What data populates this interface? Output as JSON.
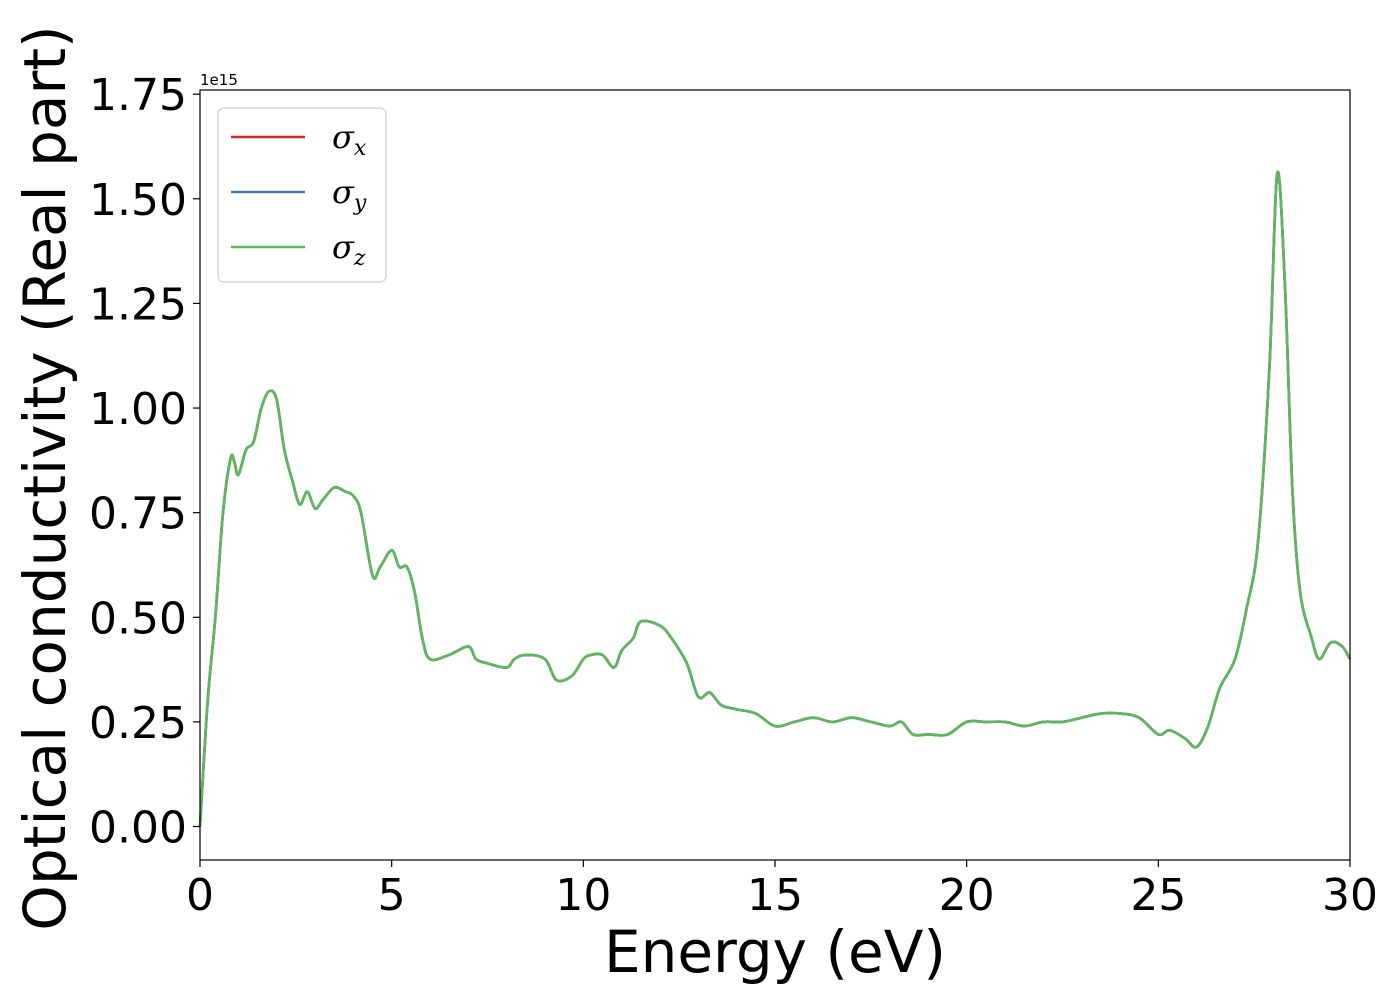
{
  "chart_data": {
    "type": "line",
    "title": "",
    "xlabel": "Energy (eV)",
    "ylabel": "Optical conductivity (Real part)",
    "y_offset_label": "1e15",
    "xlim": [
      0,
      30
    ],
    "ylim": [
      -0.08,
      1.76
    ],
    "xticks": [
      0,
      5,
      10,
      15,
      20,
      25,
      30
    ],
    "xtick_labels": [
      "0",
      "5",
      "10",
      "15",
      "20",
      "25",
      "30"
    ],
    "yticks": [
      0.0,
      0.25,
      0.5,
      0.75,
      1.0,
      1.25,
      1.5,
      1.75
    ],
    "ytick_labels": [
      "0.00",
      "0.25",
      "0.50",
      "0.75",
      "1.00",
      "1.25",
      "1.50",
      "1.75"
    ],
    "grid": false,
    "legend_position": "top-left",
    "x": [
      0.0,
      0.2,
      0.4,
      0.6,
      0.8,
      0.9,
      1.0,
      1.2,
      1.4,
      1.6,
      1.8,
      2.0,
      2.2,
      2.4,
      2.6,
      2.8,
      3.0,
      3.2,
      3.5,
      3.8,
      4.0,
      4.2,
      4.5,
      4.7,
      5.0,
      5.2,
      5.4,
      5.6,
      5.8,
      6.0,
      6.5,
      7.0,
      7.2,
      7.5,
      8.0,
      8.2,
      8.5,
      9.0,
      9.3,
      9.7,
      10.0,
      10.2,
      10.5,
      10.8,
      11.0,
      11.3,
      11.5,
      12.0,
      12.3,
      12.7,
      13.0,
      13.3,
      13.6,
      14.0,
      14.5,
      15.0,
      15.5,
      16.0,
      16.5,
      17.0,
      17.5,
      18.0,
      18.3,
      18.6,
      19.0,
      19.5,
      20.0,
      20.5,
      21.0,
      21.5,
      22.0,
      22.5,
      23.0,
      23.5,
      24.0,
      24.5,
      25.0,
      25.3,
      25.7,
      26.0,
      26.3,
      26.6,
      27.0,
      27.3,
      27.6,
      27.9,
      28.1,
      28.3,
      28.5,
      28.7,
      29.0,
      29.2,
      29.5,
      29.8,
      30.0
    ],
    "series": [
      {
        "name": "σx",
        "label_base": "σ",
        "label_sub": "x",
        "color": "#d62728",
        "values": [
          0.0,
          0.3,
          0.5,
          0.75,
          0.88,
          0.87,
          0.84,
          0.9,
          0.92,
          1.0,
          1.04,
          1.02,
          0.9,
          0.83,
          0.77,
          0.8,
          0.76,
          0.78,
          0.81,
          0.8,
          0.79,
          0.75,
          0.6,
          0.62,
          0.66,
          0.62,
          0.62,
          0.56,
          0.45,
          0.4,
          0.41,
          0.43,
          0.4,
          0.39,
          0.38,
          0.4,
          0.41,
          0.4,
          0.35,
          0.36,
          0.4,
          0.41,
          0.41,
          0.38,
          0.42,
          0.45,
          0.49,
          0.48,
          0.45,
          0.39,
          0.31,
          0.32,
          0.29,
          0.28,
          0.27,
          0.24,
          0.25,
          0.26,
          0.25,
          0.26,
          0.25,
          0.24,
          0.25,
          0.22,
          0.22,
          0.22,
          0.25,
          0.25,
          0.25,
          0.24,
          0.25,
          0.25,
          0.26,
          0.27,
          0.27,
          0.26,
          0.22,
          0.23,
          0.21,
          0.19,
          0.24,
          0.33,
          0.4,
          0.52,
          0.68,
          1.1,
          1.56,
          1.3,
          0.8,
          0.56,
          0.45,
          0.4,
          0.44,
          0.43,
          0.4
        ]
      },
      {
        "name": "σy",
        "label_base": "σ",
        "label_sub": "y",
        "color": "#3d7ab5",
        "values": [
          0.0,
          0.3,
          0.5,
          0.75,
          0.88,
          0.87,
          0.84,
          0.9,
          0.92,
          1.0,
          1.04,
          1.02,
          0.9,
          0.83,
          0.77,
          0.8,
          0.76,
          0.78,
          0.81,
          0.8,
          0.79,
          0.75,
          0.6,
          0.62,
          0.66,
          0.62,
          0.62,
          0.56,
          0.45,
          0.4,
          0.41,
          0.43,
          0.4,
          0.39,
          0.38,
          0.4,
          0.41,
          0.4,
          0.35,
          0.36,
          0.4,
          0.41,
          0.41,
          0.38,
          0.42,
          0.45,
          0.49,
          0.48,
          0.45,
          0.39,
          0.31,
          0.32,
          0.29,
          0.28,
          0.27,
          0.24,
          0.25,
          0.26,
          0.25,
          0.26,
          0.25,
          0.24,
          0.25,
          0.22,
          0.22,
          0.22,
          0.25,
          0.25,
          0.25,
          0.24,
          0.25,
          0.25,
          0.26,
          0.27,
          0.27,
          0.26,
          0.22,
          0.23,
          0.21,
          0.19,
          0.24,
          0.33,
          0.4,
          0.52,
          0.68,
          1.1,
          1.56,
          1.3,
          0.8,
          0.56,
          0.45,
          0.4,
          0.44,
          0.43,
          0.4
        ]
      },
      {
        "name": "σz",
        "label_base": "σ",
        "label_sub": "z",
        "color": "#5cb85c",
        "values": [
          0.0,
          0.3,
          0.5,
          0.75,
          0.88,
          0.87,
          0.84,
          0.9,
          0.92,
          1.0,
          1.04,
          1.02,
          0.9,
          0.83,
          0.77,
          0.8,
          0.76,
          0.78,
          0.81,
          0.8,
          0.79,
          0.75,
          0.6,
          0.62,
          0.66,
          0.62,
          0.62,
          0.56,
          0.45,
          0.4,
          0.41,
          0.43,
          0.4,
          0.39,
          0.38,
          0.4,
          0.41,
          0.4,
          0.35,
          0.36,
          0.4,
          0.41,
          0.41,
          0.38,
          0.42,
          0.45,
          0.49,
          0.48,
          0.45,
          0.39,
          0.31,
          0.32,
          0.29,
          0.28,
          0.27,
          0.24,
          0.25,
          0.26,
          0.25,
          0.26,
          0.25,
          0.24,
          0.25,
          0.22,
          0.22,
          0.22,
          0.25,
          0.25,
          0.25,
          0.24,
          0.25,
          0.25,
          0.26,
          0.27,
          0.27,
          0.26,
          0.22,
          0.23,
          0.21,
          0.19,
          0.24,
          0.33,
          0.4,
          0.52,
          0.68,
          1.1,
          1.56,
          1.3,
          0.8,
          0.56,
          0.45,
          0.4,
          0.44,
          0.43,
          0.4
        ]
      }
    ]
  }
}
